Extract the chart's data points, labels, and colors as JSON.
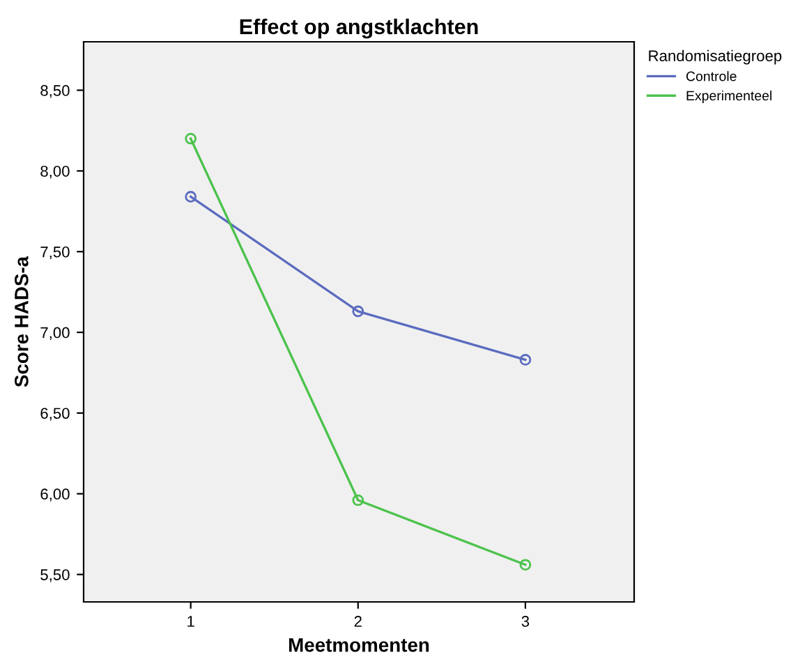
{
  "chart_data": {
    "type": "line",
    "title": "Effect op angstklachten",
    "xlabel": "Meetmomenten",
    "ylabel": "Score HADS-a",
    "legend_title": "Randomisatiegroep",
    "x": [
      1,
      2,
      3
    ],
    "series": [
      {
        "name": "Controle",
        "color": "#5b6bbf",
        "values": [
          7.84,
          7.13,
          6.83
        ]
      },
      {
        "name": "Experimenteel",
        "color": "#4cc24c",
        "values": [
          8.2,
          5.96,
          5.56
        ]
      }
    ],
    "xlim": [
      0.36,
      3.65
    ],
    "xticks": [
      1,
      2,
      3
    ],
    "ylim": [
      5.33,
      8.8
    ],
    "yticks": [
      {
        "value": 5.5,
        "label": "5,50"
      },
      {
        "value": 6.0,
        "label": "6,00"
      },
      {
        "value": 6.5,
        "label": "6,50"
      },
      {
        "value": 7.0,
        "label": "7,00"
      },
      {
        "value": 7.5,
        "label": "7,50"
      },
      {
        "value": 8.0,
        "label": "8,00"
      },
      {
        "value": 8.5,
        "label": "8,50"
      }
    ],
    "marker": "circle",
    "line_style": "solid",
    "legend": "top right",
    "grid": false
  }
}
